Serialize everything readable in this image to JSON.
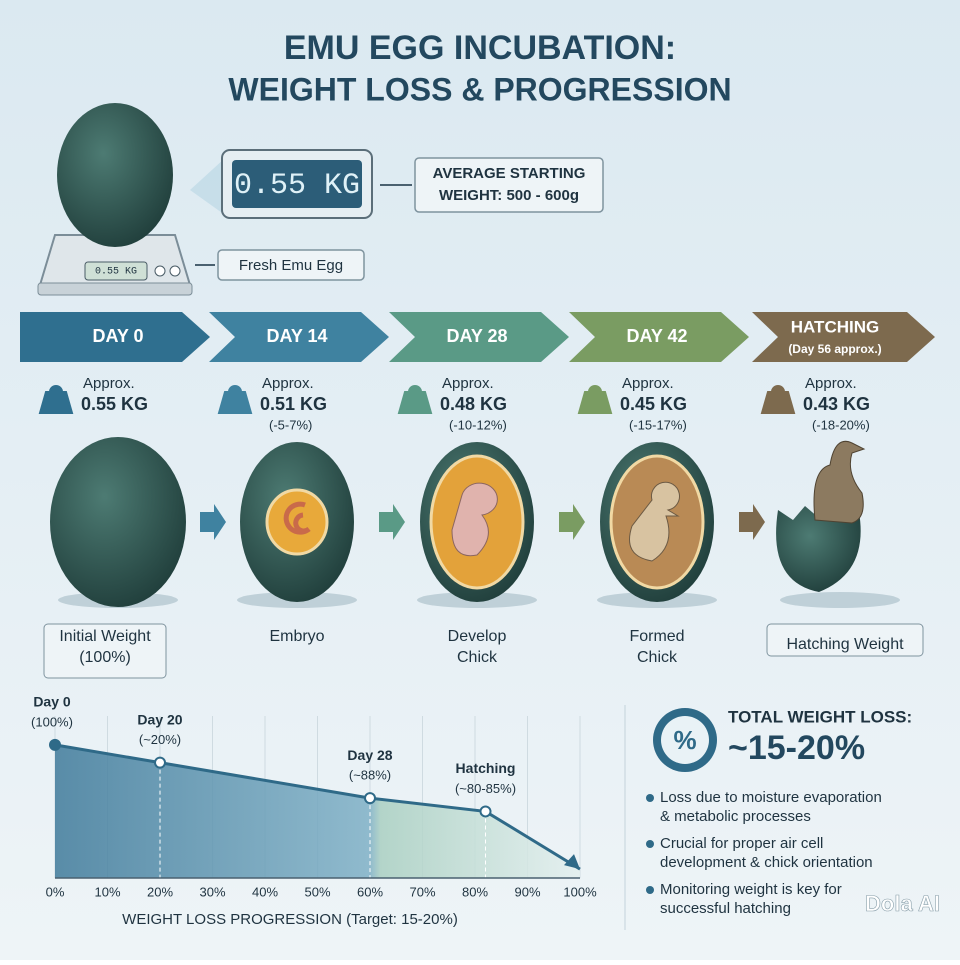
{
  "title": {
    "line1": "EMU EGG INCUBATION:",
    "line2": "WEIGHT LOSS & PROGRESSION"
  },
  "scale": {
    "display": "0.55 KG",
    "small_display": "0.55 KG",
    "callout_line1": "AVERAGE STARTING",
    "callout_line2": "WEIGHT: 500 - 600g",
    "label": "Fresh Emu Egg"
  },
  "stages": [
    {
      "day": "DAY 0",
      "approx": "Approx.",
      "weight": "0.55 KG",
      "caption": [
        "Initial Weight",
        "(100%)"
      ],
      "color": "#2f6f8f"
    },
    {
      "day": "DAY 14",
      "approx": "Approx.",
      "weight": "0.51 KG",
      "change": "(-5-7%)",
      "caption": [
        "Embryo"
      ],
      "color": "#3f82a0"
    },
    {
      "day": "DAY 28",
      "approx": "Approx.",
      "weight": "0.48 KG",
      "change": "(-10-12%)",
      "caption": [
        "Develop",
        "Chick"
      ],
      "color": "#5a9a86"
    },
    {
      "day": "DAY 42",
      "approx": "Approx.",
      "weight": "0.45 KG",
      "change": "(-15-17%)",
      "caption": [
        "Formed",
        "Chick"
      ],
      "color": "#7a9c62"
    },
    {
      "day": "HATCHING",
      "day_note": "(Day 56 approx.)",
      "approx": "Approx.",
      "weight": "0.43 KG",
      "change": "(-18-20%)",
      "caption": [
        "Hatching Weight"
      ],
      "color": "#7d6a4e"
    }
  ],
  "chart_data": {
    "type": "line",
    "x_label": "WEIGHT LOSS PROGRESSION (Target: 15-20%)",
    "x": [
      0,
      20,
      60,
      82,
      100
    ],
    "values": [
      100,
      96,
      88,
      85,
      72
    ],
    "color": "#2f6a88",
    "xlim": [
      0,
      100
    ],
    "ylim": [
      70,
      102
    ],
    "xticks": [
      {
        "value": 0,
        "label": "0%"
      },
      {
        "value": 10,
        "label": "10%"
      },
      {
        "value": 20,
        "label": "20%"
      },
      {
        "value": 30,
        "label": "30%"
      },
      {
        "value": 40,
        "label": "40%"
      },
      {
        "value": 50,
        "label": "50%"
      },
      {
        "value": 60,
        "label": "60%"
      },
      {
        "value": 70,
        "label": "70%"
      },
      {
        "value": 80,
        "label": "80%"
      },
      {
        "value": 90,
        "label": "90%"
      },
      {
        "value": 100,
        "label": "100%"
      }
    ],
    "grid": true,
    "annotations": [
      {
        "label": "Day 0",
        "note": "(100%)"
      },
      {
        "label": "Day 20",
        "note": "(~20%)"
      },
      {
        "label": "Day 28",
        "note": "(~88%)"
      },
      {
        "label": "Hatching",
        "note": "(~80-85%)"
      }
    ]
  },
  "summary": {
    "icon": "%",
    "title": "TOTAL WEIGHT LOSS:",
    "value": "~15-20%",
    "bullets": [
      [
        "Loss due to moisture evaporation",
        "& metabolic processes"
      ],
      [
        "Crucial for proper air cell",
        "development & chick orientation"
      ],
      [
        "Monitoring weight is key for",
        "successful hatching"
      ]
    ]
  },
  "watermark": "Dola AI"
}
